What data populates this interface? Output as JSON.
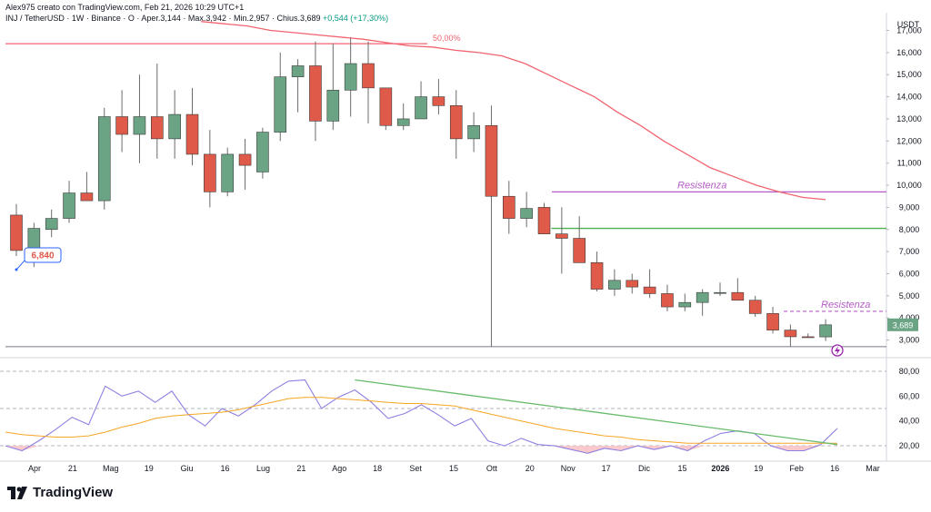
{
  "header": {
    "author": "Alex975 creato con TradingView.com, Feb 21, 2026 10:29 UTC+1",
    "symbol": "INJ / TetherUSD · 1W · Binance",
    "ohlc": "O · Aper.3,144 · Max.3,942 · Min.2,957 · Chius.3,689",
    "change": "+0,544 (+17,30%)"
  },
  "logo": {
    "text": "TradingView"
  },
  "colors": {
    "up": "#6aa484",
    "down": "#e05a4a",
    "ma": "#f06470",
    "resistance": "#b75cc7",
    "green_line": "#4caf50",
    "rsi": "#8f7fe0",
    "rsi_ma": "#f5a623",
    "trend": "#66bb6a"
  },
  "chart_data": [
    {
      "type": "candlestick",
      "currency_label": "USDT",
      "y_ticks": [
        3000,
        4000,
        5000,
        6000,
        7000,
        8000,
        9000,
        10000,
        11000,
        12000,
        13000,
        14000,
        15000,
        16000,
        17000
      ],
      "y_tick_labels": [
        "3,000",
        "4,000",
        "5,000",
        "6,000",
        "7,000",
        "8,000",
        "9,000",
        "10,000",
        "11,000",
        "12,000",
        "13,000",
        "14,000",
        "15,000",
        "16,000",
        "17,000"
      ],
      "ylim": [
        2450,
        17800
      ],
      "x_labels": [
        "Apr",
        "21",
        "Mag",
        "19",
        "Giu",
        "16",
        "Lug",
        "21",
        "Ago",
        "18",
        "Set",
        "15",
        "Ott",
        "20",
        "Nov",
        "17",
        "Dic",
        "15",
        "2026",
        "19",
        "Feb",
        "16",
        "Mar"
      ],
      "candles": [
        {
          "o": 8650,
          "h": 9150,
          "l": 6800,
          "c": 7050
        },
        {
          "o": 7050,
          "h": 8300,
          "l": 6300,
          "c": 8050
        },
        {
          "o": 8000,
          "h": 8900,
          "l": 7650,
          "c": 8500
        },
        {
          "o": 8500,
          "h": 10200,
          "l": 8300,
          "c": 9650
        },
        {
          "o": 9650,
          "h": 10600,
          "l": 9300,
          "c": 9300
        },
        {
          "o": 9300,
          "h": 13500,
          "l": 8900,
          "c": 13100
        },
        {
          "o": 13100,
          "h": 14300,
          "l": 11500,
          "c": 12300
        },
        {
          "o": 12300,
          "h": 15000,
          "l": 11000,
          "c": 13100
        },
        {
          "o": 13100,
          "h": 15500,
          "l": 11200,
          "c": 12100
        },
        {
          "o": 12100,
          "h": 14300,
          "l": 11200,
          "c": 13200
        },
        {
          "o": 13200,
          "h": 14400,
          "l": 10900,
          "c": 11400
        },
        {
          "o": 11400,
          "h": 12500,
          "l": 9000,
          "c": 9700
        },
        {
          "o": 9700,
          "h": 11700,
          "l": 9500,
          "c": 11400
        },
        {
          "o": 11400,
          "h": 12100,
          "l": 9800,
          "c": 10900
        },
        {
          "o": 10600,
          "h": 12600,
          "l": 10300,
          "c": 12400
        },
        {
          "o": 12400,
          "h": 16000,
          "l": 12000,
          "c": 14900
        },
        {
          "o": 14900,
          "h": 15700,
          "l": 13300,
          "c": 15400
        },
        {
          "o": 15400,
          "h": 16500,
          "l": 12000,
          "c": 12900
        },
        {
          "o": 12900,
          "h": 16400,
          "l": 12500,
          "c": 14300
        },
        {
          "o": 14300,
          "h": 16700,
          "l": 13100,
          "c": 15500
        },
        {
          "o": 15500,
          "h": 16500,
          "l": 12800,
          "c": 14400
        },
        {
          "o": 14400,
          "h": 14300,
          "l": 12500,
          "c": 12700
        },
        {
          "o": 12700,
          "h": 13700,
          "l": 12500,
          "c": 13000
        },
        {
          "o": 13000,
          "h": 14700,
          "l": 13000,
          "c": 14000
        },
        {
          "o": 14000,
          "h": 14800,
          "l": 13200,
          "c": 13600
        },
        {
          "o": 13600,
          "h": 14300,
          "l": 11200,
          "c": 12100
        },
        {
          "o": 12100,
          "h": 13300,
          "l": 11500,
          "c": 12700
        },
        {
          "o": 12700,
          "h": 13600,
          "l": 2700,
          "c": 9500
        },
        {
          "o": 9500,
          "h": 10200,
          "l": 7800,
          "c": 8500
        },
        {
          "o": 8500,
          "h": 9700,
          "l": 8100,
          "c": 8950
        },
        {
          "o": 9000,
          "h": 9200,
          "l": 7800,
          "c": 7800
        },
        {
          "o": 7800,
          "h": 9000,
          "l": 6000,
          "c": 7600
        },
        {
          "o": 7600,
          "h": 8600,
          "l": 6500,
          "c": 6500
        },
        {
          "o": 6500,
          "h": 7000,
          "l": 5200,
          "c": 5300
        },
        {
          "o": 5300,
          "h": 6200,
          "l": 5000,
          "c": 5700
        },
        {
          "o": 5700,
          "h": 6000,
          "l": 5100,
          "c": 5400
        },
        {
          "o": 5400,
          "h": 6200,
          "l": 4900,
          "c": 5100
        },
        {
          "o": 5100,
          "h": 5500,
          "l": 4300,
          "c": 4500
        },
        {
          "o": 4500,
          "h": 5100,
          "l": 4300,
          "c": 4700
        },
        {
          "o": 4700,
          "h": 5300,
          "l": 4100,
          "c": 5150
        },
        {
          "o": 5150,
          "h": 5600,
          "l": 5000,
          "c": 5150
        },
        {
          "o": 5150,
          "h": 5800,
          "l": 4800,
          "c": 4800
        },
        {
          "o": 4800,
          "h": 5000,
          "l": 4050,
          "c": 4200
        },
        {
          "o": 4200,
          "h": 4500,
          "l": 3300,
          "c": 3450
        },
        {
          "o": 3450,
          "h": 3700,
          "l": 2700,
          "c": 3150
        },
        {
          "o": 3150,
          "h": 3300,
          "l": 3100,
          "c": 3144
        },
        {
          "o": 3144,
          "h": 3942,
          "l": 2957,
          "c": 3689
        }
      ],
      "moving_average": [
        17400,
        17300,
        17200,
        17000,
        16900,
        16800,
        16700,
        16600,
        16450,
        16300,
        16250,
        16100,
        16000,
        15850,
        15500,
        15000,
        14500,
        14000,
        13300,
        12700,
        12000,
        11400,
        10800,
        10400,
        10000,
        9700,
        9450,
        9350
      ],
      "ma_start_index": 19,
      "fib_level": {
        "label": "50,00%",
        "value": 16400,
        "from_index": 0,
        "to_index": 18
      },
      "resistance_upper": {
        "label": "Resistenza",
        "value": 9700,
        "from_index": 29,
        "to_index": 46
      },
      "resistance_lower": {
        "label": "Resistenza",
        "value": 4300,
        "from_index": 42,
        "to_index": 46
      },
      "green_level": {
        "value": 8050,
        "from_index": 30,
        "to_index": 46
      },
      "bottom_level": 2700,
      "last_price_label": "3,689",
      "last_price": 3689,
      "callout_label": "6,840"
    },
    {
      "type": "line",
      "y_ticks": [
        20,
        40,
        60,
        80
      ],
      "y_tick_labels": [
        "20,00",
        "40,00",
        "60,00",
        "80,00"
      ],
      "ylim": [
        12,
        88
      ],
      "rsi": [
        20,
        16,
        24,
        33,
        43,
        37,
        68,
        60,
        64,
        55,
        64,
        45,
        36,
        50,
        44,
        53,
        64,
        72,
        73,
        50,
        59,
        65,
        55,
        42,
        46,
        53,
        45,
        36,
        42,
        24,
        20,
        26,
        21,
        20,
        17,
        14,
        18,
        16,
        20,
        17,
        20,
        16,
        24,
        30,
        32,
        30,
        20,
        16,
        16,
        21,
        34
      ],
      "rsi_ma": [
        31,
        29,
        28,
        27,
        27,
        28,
        31,
        35,
        38,
        42,
        44,
        45,
        46,
        47,
        49,
        52,
        55,
        58,
        59,
        59,
        58,
        57,
        56,
        55,
        54,
        54,
        53,
        52,
        49,
        46,
        43,
        40,
        37,
        34,
        32,
        30,
        28,
        27,
        25,
        24,
        23,
        22,
        22,
        22,
        22,
        22,
        22,
        22,
        22,
        22,
        22
      ],
      "trend_line": {
        "from": [
          21,
          73
        ],
        "to": [
          50,
          21
        ]
      },
      "levels": [
        80,
        50,
        20
      ]
    }
  ]
}
